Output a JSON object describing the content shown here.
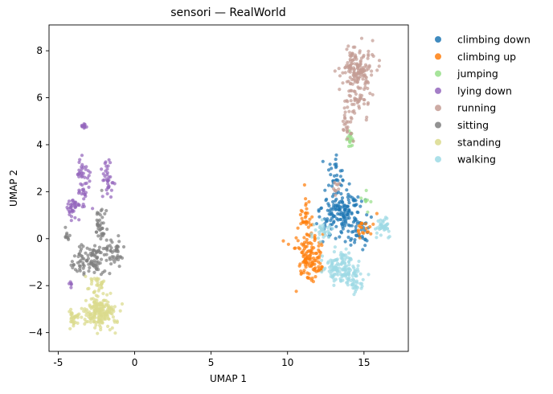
{
  "chart_data": {
    "type": "scatter",
    "title": "sensori — RealWorld",
    "xlabel": "UMAP 1",
    "ylabel": "UMAP 2",
    "xlim": [
      -5.6,
      17.9
    ],
    "ylim": [
      -4.8,
      9.1
    ],
    "xticks": [
      -5,
      0,
      5,
      10,
      15
    ],
    "yticks": [
      -4,
      -2,
      0,
      2,
      4,
      6,
      8
    ],
    "grid": false,
    "legend_position": "outside-right",
    "series": [
      {
        "name": "climbing down",
        "color": "#1f77b4",
        "clusters": [
          [
            13.6,
            1.0,
            1.2,
            0.9,
            160
          ],
          [
            13.2,
            2.6,
            0.5,
            0.6,
            30
          ],
          [
            14.6,
            0.2,
            0.6,
            0.6,
            30
          ]
        ]
      },
      {
        "name": "climbing up",
        "color": "#ff7f0e",
        "clusters": [
          [
            11.4,
            -0.8,
            0.7,
            0.8,
            130
          ],
          [
            11.2,
            0.9,
            0.4,
            0.7,
            30
          ],
          [
            15.1,
            0.4,
            0.5,
            0.4,
            20
          ]
        ]
      },
      {
        "name": "jumping",
        "color": "#98df8a",
        "clusters": [
          [
            14.1,
            4.2,
            0.15,
            0.4,
            18
          ],
          [
            15.2,
            1.6,
            0.3,
            0.4,
            8
          ]
        ]
      },
      {
        "name": "lying down",
        "color": "#9467bd",
        "clusters": [
          [
            -4.0,
            1.3,
            0.35,
            0.35,
            35
          ],
          [
            -3.4,
            2.4,
            0.4,
            1.0,
            50
          ],
          [
            -1.8,
            2.6,
            0.4,
            0.9,
            35
          ],
          [
            -3.3,
            4.8,
            0.12,
            0.08,
            12
          ],
          [
            -4.2,
            -1.9,
            0.1,
            0.15,
            6
          ]
        ]
      },
      {
        "name": "running",
        "color": "#c49c94",
        "clusters": [
          [
            14.5,
            7.2,
            0.8,
            0.7,
            160
          ],
          [
            14.6,
            5.8,
            0.7,
            0.5,
            40
          ],
          [
            13.9,
            4.8,
            0.4,
            0.6,
            25
          ],
          [
            13.2,
            2.2,
            0.3,
            0.3,
            10
          ]
        ]
      },
      {
        "name": "sitting",
        "color": "#7f7f7f",
        "clusters": [
          [
            -2.8,
            -0.9,
            0.8,
            0.6,
            100
          ],
          [
            -1.3,
            -0.5,
            0.5,
            0.5,
            40
          ],
          [
            -2.2,
            0.7,
            0.3,
            0.8,
            40
          ],
          [
            -4.4,
            0.2,
            0.15,
            0.2,
            10
          ]
        ]
      },
      {
        "name": "standing",
        "color": "#dbdb8d",
        "clusters": [
          [
            -2.3,
            -3.1,
            0.8,
            0.6,
            200
          ],
          [
            -4.0,
            -3.4,
            0.3,
            0.3,
            30
          ],
          [
            -2.5,
            -1.9,
            0.5,
            0.3,
            30
          ]
        ]
      },
      {
        "name": "walking",
        "color": "#9edae5",
        "clusters": [
          [
            13.5,
            -1.2,
            0.9,
            0.6,
            140
          ],
          [
            16.3,
            0.5,
            0.4,
            0.4,
            40
          ],
          [
            12.2,
            0.3,
            0.5,
            0.4,
            30
          ],
          [
            14.5,
            -1.9,
            0.5,
            0.5,
            30
          ]
        ]
      }
    ]
  }
}
